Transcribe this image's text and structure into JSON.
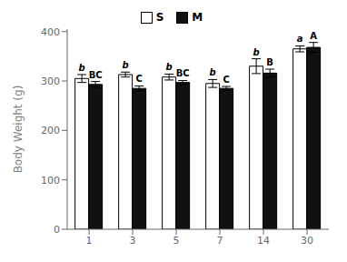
{
  "chart_data": {
    "type": "bar",
    "ylabel": "Body Weight (g)",
    "categories": [
      "1",
      "3",
      "5",
      "7",
      "14",
      "30"
    ],
    "series": [
      {
        "name": "S",
        "color": "#ffffff",
        "values": [
          305,
          313,
          308,
          295,
          330,
          365
        ],
        "errors": [
          8,
          5,
          6,
          8,
          15,
          6
        ],
        "annotations": [
          "b",
          "b",
          "b",
          "b",
          "b",
          "a"
        ]
      },
      {
        "name": "M",
        "color": "#111111",
        "values": [
          293,
          285,
          297,
          285,
          316,
          368
        ],
        "errors": [
          6,
          5,
          4,
          4,
          8,
          10
        ],
        "annotations": [
          "BC",
          "C",
          "BC",
          "C",
          "B",
          "A"
        ]
      }
    ],
    "ylim": [
      0,
      405
    ],
    "yticks": [
      0,
      100,
      200,
      300,
      400
    ],
    "grid": false,
    "legend": "upper center"
  }
}
